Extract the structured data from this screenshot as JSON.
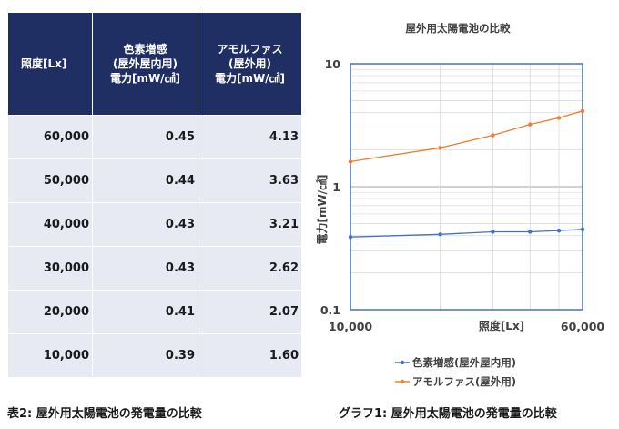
{
  "table": {
    "caption": "表2: 屋外用太陽電池の発電量の比較",
    "headers": [
      "照度[Lx]",
      "色素増感\n(屋外屋内用)\n電力[mW/㎠]",
      "アモルファス\n(屋外用)\n電力[mW/㎠]"
    ],
    "rows": [
      [
        "60,000",
        "0.45",
        "4.13"
      ],
      [
        "50,000",
        "0.44",
        "3.63"
      ],
      [
        "40,000",
        "0.43",
        "3.21"
      ],
      [
        "30,000",
        "0.43",
        "2.62"
      ],
      [
        "20,000",
        "0.41",
        "2.07"
      ],
      [
        "10,000",
        "0.39",
        "1.60"
      ]
    ]
  },
  "chart_caption": "グラフ1: 屋外用太陽電池の発電量の比較",
  "chart_data": {
    "type": "line",
    "title": "屋外用太陽電池の比較",
    "xlabel": "照度[Lx]",
    "ylabel": "電力[mW/㎠]",
    "x_scale": "log",
    "y_scale": "log",
    "xlim": [
      10000,
      60000
    ],
    "ylim": [
      0.1,
      10
    ],
    "x_tick_labels": [
      "10,000",
      "60,000"
    ],
    "y_tick_labels": [
      "0.1",
      "1",
      "10"
    ],
    "x": [
      10000,
      20000,
      30000,
      40000,
      50000,
      60000
    ],
    "series": [
      {
        "name": "色素増感(屋外屋内用)",
        "color": "#4472c4",
        "values": [
          0.39,
          0.41,
          0.43,
          0.43,
          0.44,
          0.45
        ]
      },
      {
        "name": "アモルファス(屋外用)",
        "color": "#ed7d31",
        "values": [
          1.6,
          2.07,
          2.62,
          3.21,
          3.63,
          4.13
        ]
      }
    ],
    "grid": true,
    "legend_position": "bottom",
    "frame_color": "#4472c4"
  }
}
